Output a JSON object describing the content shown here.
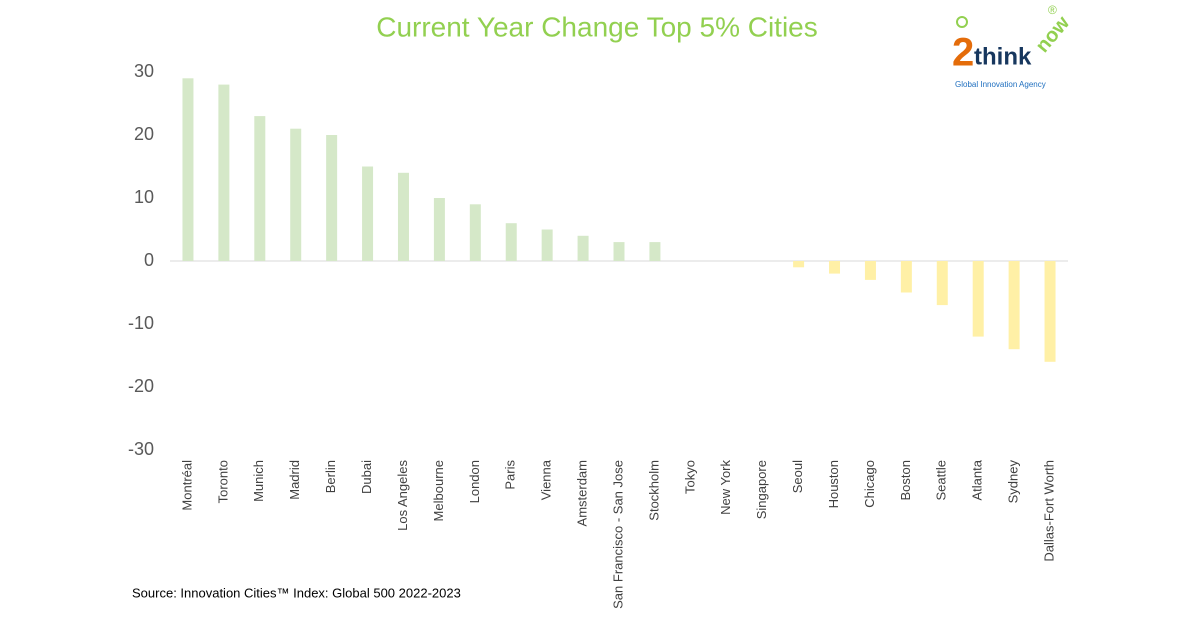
{
  "chart_data": {
    "type": "bar",
    "title": "Current Year Change Top 5% Cities",
    "categories": [
      "Montréal",
      "Toronto",
      "Munich",
      "Madrid",
      "Berlin",
      "Dubai",
      "Los Angeles",
      "Melbourne",
      "London",
      "Paris",
      "Vienna",
      "Amsterdam",
      "San Francisco - San Jose",
      "Stockholm",
      "Tokyo",
      "New York",
      "Singapore",
      "Seoul",
      "Houston",
      "Chicago",
      "Boston",
      "Seattle",
      "Atlanta",
      "Sydney",
      "Dallas-Fort Worth"
    ],
    "values": [
      29,
      28,
      23,
      21,
      20,
      15,
      14,
      10,
      9,
      6,
      5,
      4,
      3,
      3,
      0,
      0,
      0,
      -1,
      -2,
      -3,
      -5,
      -7,
      -12,
      -14,
      -16
    ],
    "color": "#d5e8c8",
    "negative_color": "#fff0a6",
    "ylim": [
      -30,
      30
    ],
    "yticks": [
      -30,
      -20,
      -10,
      0,
      10,
      20,
      30
    ],
    "grid": false,
    "source": "Source: Innovation Cities™ Index: Global 500 2022-2023"
  },
  "logo": {
    "parts": [
      "2",
      "think",
      "now",
      "®"
    ],
    "tagline": "Global Innovation Agency"
  }
}
